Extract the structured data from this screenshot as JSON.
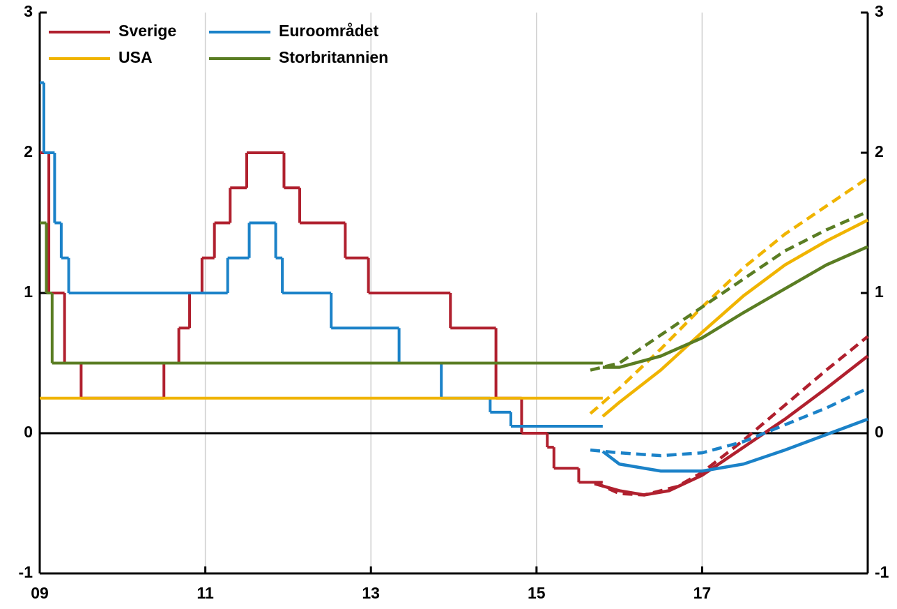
{
  "chart_data": {
    "type": "line",
    "xlim": [
      2009,
      2019
    ],
    "ylim": [
      -1,
      3
    ],
    "xticks": [
      {
        "value": 2009,
        "label": "09"
      },
      {
        "value": 2011,
        "label": "11"
      },
      {
        "value": 2013,
        "label": "13"
      },
      {
        "value": 2015,
        "label": "15"
      },
      {
        "value": 2017,
        "label": "17"
      }
    ],
    "yticks": [
      -1,
      0,
      1,
      2,
      3
    ],
    "grid": true,
    "legend": "upper left",
    "series": [
      {
        "name": "Sverige",
        "color": "#b0202e",
        "step": true,
        "x": [
          2009.0,
          2009.11,
          2009.3,
          2009.5,
          2010.5,
          2010.68,
          2010.81,
          2010.96,
          2011.11,
          2011.3,
          2011.5,
          2011.95,
          2012.14,
          2012.69,
          2012.97,
          2013.96,
          2014.51,
          2014.82,
          2015.13,
          2015.21,
          2015.51,
          2015.8
        ],
        "values": [
          2,
          1,
          0.5,
          0.25,
          0.5,
          0.75,
          1,
          1.25,
          1.5,
          1.75,
          2,
          1.75,
          1.5,
          1.25,
          1,
          0.75,
          0.25,
          0,
          -0.1,
          -0.25,
          -0.35,
          -0.35
        ],
        "projections": [
          {
            "dashed": false,
            "x": [
              2015.7,
              2016,
              2016.3,
              2016.6,
              2017,
              2017.5,
              2018,
              2018.5,
              2019
            ],
            "values": [
              -0.36,
              -0.41,
              -0.44,
              -0.41,
              -0.3,
              -0.1,
              0.1,
              0.32,
              0.55
            ]
          },
          {
            "dashed": true,
            "x": [
              2015.7,
              2016,
              2016.3,
              2016.7,
              2017,
              2017.5,
              2018,
              2018.5,
              2019
            ],
            "values": [
              -0.35,
              -0.43,
              -0.44,
              -0.38,
              -0.28,
              -0.05,
              0.2,
              0.45,
              0.69
            ]
          }
        ]
      },
      {
        "name": "Euroområdet",
        "color": "#1b82c8",
        "step": true,
        "x": [
          2009.0,
          2009.05,
          2009.18,
          2009.26,
          2009.35,
          2011.27,
          2011.53,
          2011.85,
          2011.93,
          2012.52,
          2013.34,
          2013.85,
          2014.44,
          2014.69,
          2015.8
        ],
        "values": [
          2.5,
          2,
          1.5,
          1.25,
          1,
          1.25,
          1.5,
          1.25,
          1,
          0.75,
          0.5,
          0.25,
          0.15,
          0.05,
          0.05
        ],
        "projections": [
          {
            "dashed": false,
            "x": [
              2015.8,
              2016,
              2016.5,
              2017,
              2017.5,
              2018,
              2018.5,
              2019
            ],
            "values": [
              -0.13,
              -0.22,
              -0.27,
              -0.27,
              -0.22,
              -0.12,
              -0.01,
              0.1
            ]
          },
          {
            "dashed": true,
            "x": [
              2015.65,
              2016,
              2016.5,
              2017,
              2017.5,
              2018,
              2018.5,
              2019
            ],
            "values": [
              -0.12,
              -0.14,
              -0.16,
              -0.14,
              -0.06,
              0.06,
              0.18,
              0.32
            ]
          }
        ]
      },
      {
        "name": "USA",
        "color": "#f0b400",
        "step": true,
        "x": [
          2009.0,
          2015.8
        ],
        "values": [
          0.25,
          0.25
        ],
        "projections": [
          {
            "dashed": false,
            "x": [
              2015.8,
              2016,
              2016.5,
              2017,
              2017.5,
              2018,
              2018.5,
              2019
            ],
            "values": [
              0.12,
              0.22,
              0.45,
              0.72,
              0.98,
              1.2,
              1.37,
              1.52
            ]
          },
          {
            "dashed": true,
            "x": [
              2015.65,
              2016,
              2016.5,
              2017,
              2017.5,
              2018,
              2018.5,
              2019
            ],
            "values": [
              0.14,
              0.32,
              0.6,
              0.9,
              1.18,
              1.42,
              1.62,
              1.82
            ]
          }
        ]
      },
      {
        "name": "Storbritannien",
        "color": "#5a7d23",
        "step": true,
        "x": [
          2009.0,
          2009.08,
          2009.15,
          2015.8
        ],
        "values": [
          1.5,
          1,
          0.5,
          0.5
        ],
        "projections": [
          {
            "dashed": false,
            "x": [
              2015.8,
              2016,
              2016.5,
              2017,
              2017.5,
              2018,
              2018.5,
              2019
            ],
            "values": [
              0.47,
              0.47,
              0.55,
              0.68,
              0.86,
              1.03,
              1.2,
              1.33
            ]
          },
          {
            "dashed": true,
            "x": [
              2015.65,
              2016,
              2016.5,
              2017,
              2017.5,
              2018,
              2018.5,
              2019
            ],
            "values": [
              0.45,
              0.5,
              0.7,
              0.9,
              1.1,
              1.3,
              1.45,
              1.58
            ]
          }
        ]
      }
    ]
  }
}
